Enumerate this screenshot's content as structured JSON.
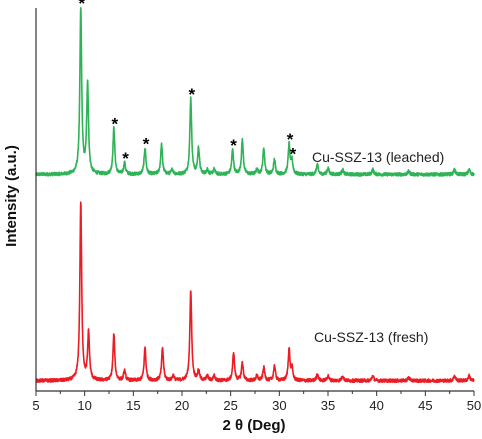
{
  "chart_data": {
    "type": "line",
    "title": "",
    "xlabel": "2 θ (Deg)",
    "ylabel": "Intensity (a.u.)",
    "xlim": [
      5,
      50
    ],
    "xticks": [
      "5",
      "10",
      "15",
      "20",
      "25",
      "30",
      "35",
      "40",
      "45",
      "50"
    ],
    "y_ticks_shown": false,
    "grid": false,
    "legend": "none",
    "background_level": 0.02,
    "series": [
      {
        "name": "Cu-SSZ-13 (leached)",
        "color": "#2eb356",
        "offset": 1.25,
        "peaks": [
          {
            "x": 9.6,
            "h": 1.0
          },
          {
            "x": 10.3,
            "h": 0.55
          },
          {
            "x": 13.0,
            "h": 0.28
          },
          {
            "x": 14.1,
            "h": 0.07
          },
          {
            "x": 16.2,
            "h": 0.16
          },
          {
            "x": 17.9,
            "h": 0.18
          },
          {
            "x": 19.0,
            "h": 0.03
          },
          {
            "x": 20.9,
            "h": 0.46
          },
          {
            "x": 21.7,
            "h": 0.16
          },
          {
            "x": 22.6,
            "h": 0.03
          },
          {
            "x": 23.3,
            "h": 0.03
          },
          {
            "x": 25.2,
            "h": 0.15
          },
          {
            "x": 26.2,
            "h": 0.21
          },
          {
            "x": 27.7,
            "h": 0.03
          },
          {
            "x": 28.4,
            "h": 0.16
          },
          {
            "x": 29.5,
            "h": 0.09
          },
          {
            "x": 31.0,
            "h": 0.18
          },
          {
            "x": 31.3,
            "h": 0.08
          },
          {
            "x": 33.9,
            "h": 0.06
          },
          {
            "x": 35.0,
            "h": 0.04
          },
          {
            "x": 36.5,
            "h": 0.03
          },
          {
            "x": 39.6,
            "h": 0.03
          },
          {
            "x": 43.3,
            "h": 0.02
          },
          {
            "x": 48.0,
            "h": 0.03
          },
          {
            "x": 49.5,
            "h": 0.03
          }
        ]
      },
      {
        "name": "Cu-SSZ-13 (fresh)",
        "color": "#ec1c24",
        "offset": 0.0,
        "peaks": [
          {
            "x": 9.6,
            "h": 1.08
          },
          {
            "x": 10.4,
            "h": 0.29
          },
          {
            "x": 13.0,
            "h": 0.28
          },
          {
            "x": 14.1,
            "h": 0.06
          },
          {
            "x": 16.2,
            "h": 0.2
          },
          {
            "x": 18.0,
            "h": 0.2
          },
          {
            "x": 19.1,
            "h": 0.03
          },
          {
            "x": 20.9,
            "h": 0.55
          },
          {
            "x": 21.7,
            "h": 0.06
          },
          {
            "x": 22.6,
            "h": 0.03
          },
          {
            "x": 23.3,
            "h": 0.03
          },
          {
            "x": 25.3,
            "h": 0.17
          },
          {
            "x": 26.2,
            "h": 0.11
          },
          {
            "x": 27.7,
            "h": 0.03
          },
          {
            "x": 28.4,
            "h": 0.08
          },
          {
            "x": 29.5,
            "h": 0.09
          },
          {
            "x": 31.0,
            "h": 0.19
          },
          {
            "x": 31.3,
            "h": 0.07
          },
          {
            "x": 33.9,
            "h": 0.04
          },
          {
            "x": 35.0,
            "h": 0.03
          },
          {
            "x": 36.5,
            "h": 0.03
          },
          {
            "x": 39.6,
            "h": 0.03
          },
          {
            "x": 43.3,
            "h": 0.02
          },
          {
            "x": 48.0,
            "h": 0.03
          },
          {
            "x": 49.5,
            "h": 0.03
          }
        ]
      }
    ],
    "annotations": [
      {
        "text": "*",
        "x": 9.6,
        "series": 0
      },
      {
        "text": "*",
        "x": 13.0,
        "series": 0
      },
      {
        "text": "*",
        "x": 14.1,
        "series": 0
      },
      {
        "text": "*",
        "x": 16.2,
        "series": 0
      },
      {
        "text": "*",
        "x": 20.9,
        "series": 0
      },
      {
        "text": "*",
        "x": 25.2,
        "series": 0
      },
      {
        "text": "*",
        "x": 31.0,
        "series": 0
      },
      {
        "text": "*",
        "x": 31.3,
        "series": 0
      }
    ]
  }
}
